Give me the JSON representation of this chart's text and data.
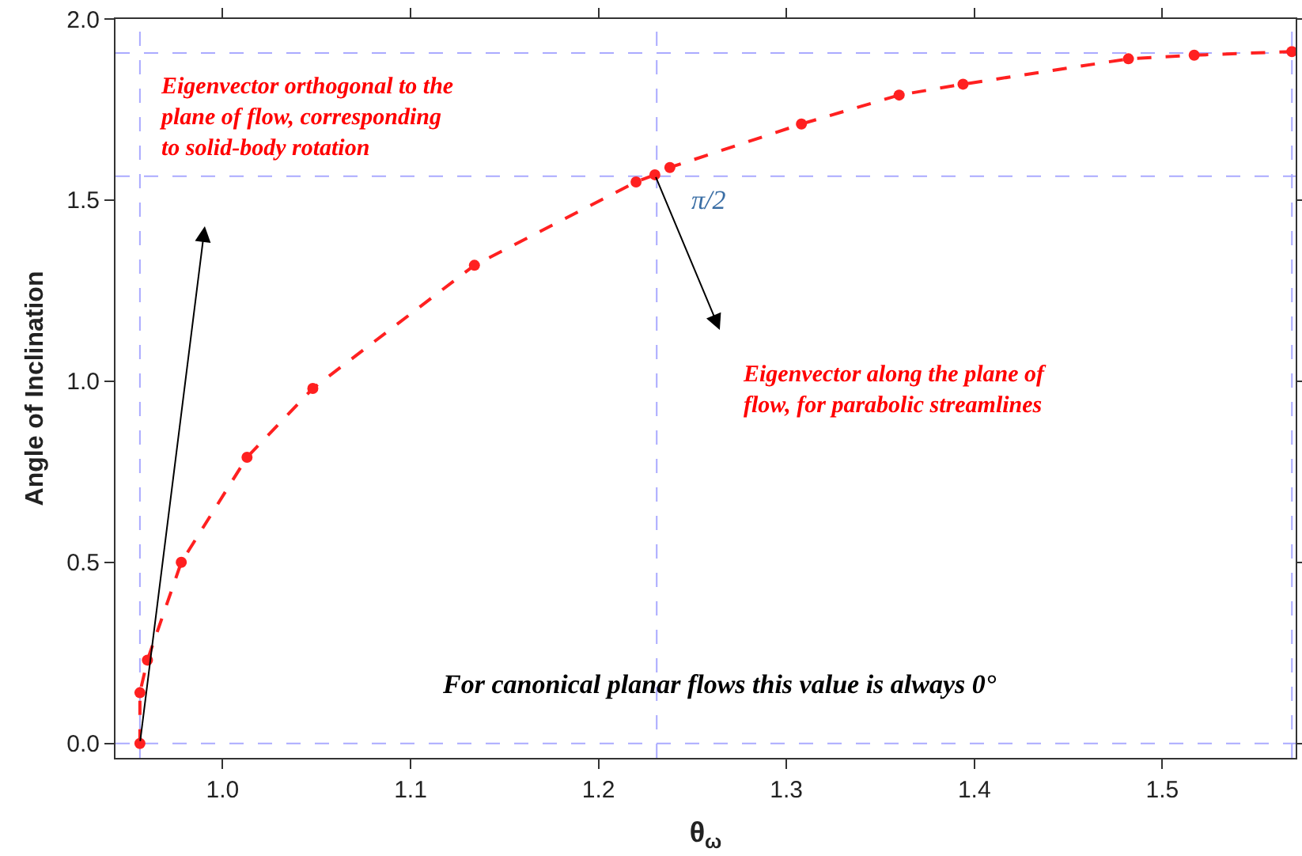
{
  "chart_data": {
    "type": "line",
    "xlabel": "θ$_{ω}$",
    "ylabel": "Angle of Inclination",
    "x": [
      0.956,
      0.956,
      0.96,
      0.978,
      1.013,
      1.048,
      1.134,
      1.22,
      1.23,
      1.238,
      1.308,
      1.36,
      1.394,
      1.482,
      1.517,
      1.569
    ],
    "series": [
      {
        "color": "#ff2020",
        "values": [
          0.0,
          0.14,
          0.23,
          0.5,
          0.79,
          0.98,
          1.32,
          1.55,
          1.57,
          1.59,
          1.71,
          1.79,
          1.82,
          1.89,
          1.9,
          1.91
        ]
      }
    ],
    "marker": "circle",
    "line_style": "dashed",
    "grid": false,
    "xlim": [
      0.943,
      1.571
    ],
    "ylim": [
      -0.04,
      2.0
    ],
    "xticks": [
      {
        "value": 1.0,
        "label": "1.0"
      },
      1.1,
      1.2,
      1.3,
      1.4,
      1.5
    ],
    "yticks": [
      {
        "value": 0,
        "label": "0.0"
      },
      0.5,
      {
        "value": 1,
        "label": "1.0"
      },
      1.5,
      {
        "value": 2,
        "label": "2.0"
      }
    ],
    "ref_lines": [
      {
        "axis": "x",
        "value": 0.956,
        "color": "#aaaaff",
        "line_style": "dashed"
      },
      {
        "axis": "x",
        "value": 1.231,
        "color": "#aaaaff",
        "line_style": "dashed"
      },
      {
        "axis": "x",
        "value": 1.569,
        "color": "#aaaaff",
        "line_style": "dashed"
      },
      {
        "axis": "y",
        "value": 0,
        "color": "#aaaaff",
        "line_style": "dashed"
      },
      {
        "axis": "y",
        "value": 1.566,
        "color": "#aaaaff",
        "line_style": "dashed"
      },
      {
        "axis": "y",
        "value": 1.906,
        "color": "#aaaaff",
        "line_style": "dashed"
      }
    ],
    "annotations": [
      "Eigenvector orthogonal to the\nplane of flow, corresponding\nto solid-body rotation",
      "Eigenvector along the plane of\nflow, for parabolic streamlines",
      "For canonical planar flows this value is always 0°",
      {
        "text": "π/2",
        "x": 1.231,
        "y": 1.569
      }
    ]
  }
}
